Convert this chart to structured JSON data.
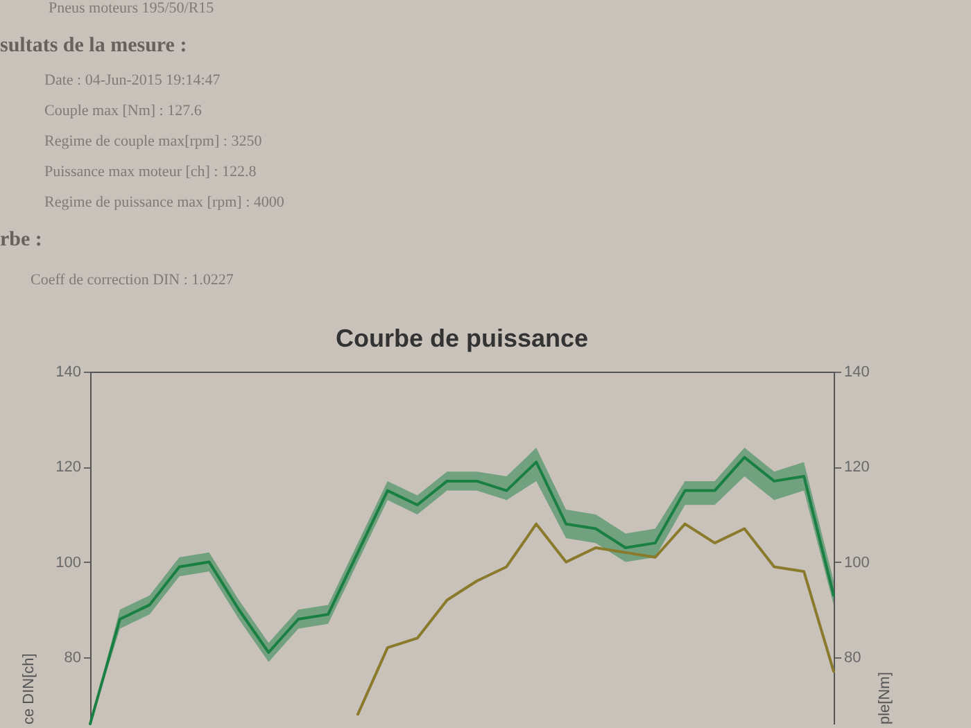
{
  "chart_data": {
    "type": "line",
    "title": "Courbe de puissance",
    "ylabel": "ce DIN[ch]",
    "y2label": "ple[Nm]",
    "annotations": [
      "Pneus moteurs 195/50/R15",
      "sultats de la mesure :",
      "Date : 04-Jun-2015 19:14:47",
      "Couple max [Nm] : 127.6",
      "Regime de couple max[rpm] : 3250",
      "Puissance max moteur [ch] : 122.8",
      "Regime de puissance max [rpm] : 4000",
      "rbe :",
      "Coeff de correction DIN : 1.0227"
    ],
    "categories": [
      null,
      null,
      null,
      null,
      null,
      null,
      null,
      null,
      null,
      null,
      null,
      null,
      null,
      null,
      null,
      null,
      null,
      null,
      null,
      null,
      null,
      null,
      null,
      null,
      null,
      null
    ],
    "ylim": [
      66,
      140
    ],
    "yticks": [
      80,
      100,
      120,
      140
    ],
    "y2lim": [
      66,
      140
    ],
    "y2ticks": [
      80,
      100,
      120,
      140
    ],
    "series": [
      {
        "color": "#1a7f42",
        "values": [
          66,
          88,
          91,
          99,
          100,
          90,
          81,
          88,
          89,
          102,
          115,
          112,
          117,
          117,
          115,
          121,
          108,
          107,
          103,
          104,
          115,
          115,
          122,
          117,
          118,
          93
        ],
        "lower": [
          66,
          86,
          89,
          97,
          98,
          88,
          79,
          86,
          87,
          100,
          113,
          110,
          115,
          115,
          113,
          117,
          105,
          104,
          100,
          101,
          112,
          112,
          118,
          113,
          115,
          91
        ],
        "upper": [
          66,
          90,
          93,
          101,
          102,
          92,
          83,
          90,
          91,
          104,
          117,
          114,
          119,
          119,
          118,
          124,
          111,
          110,
          106,
          107,
          117,
          117,
          124,
          119,
          121,
          96
        ]
      },
      {
        "color": "#8a7a2c",
        "axis": "y2",
        "values": [
          null,
          null,
          null,
          null,
          null,
          null,
          null,
          null,
          null,
          68,
          82,
          84,
          92,
          96,
          99,
          108,
          100,
          103,
          102,
          101,
          108,
          104,
          107,
          99,
          98,
          77
        ]
      }
    ]
  }
}
